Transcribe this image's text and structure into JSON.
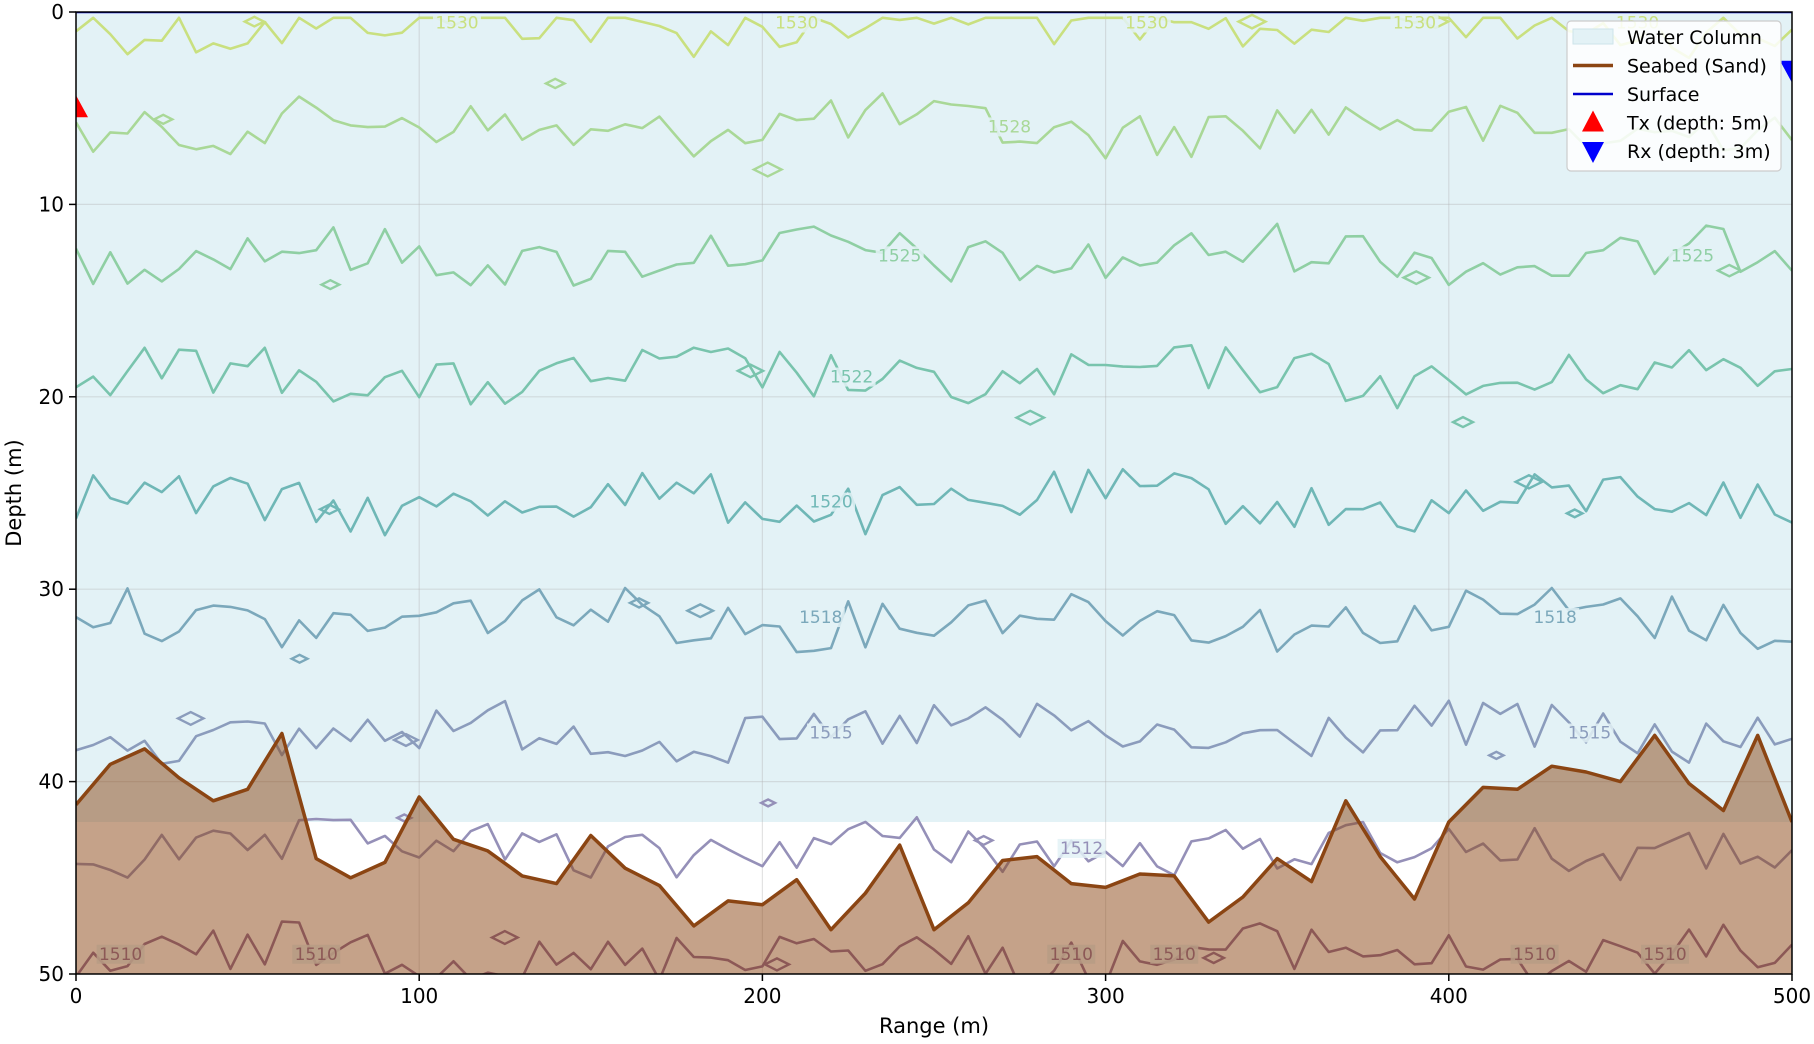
{
  "chart_data": {
    "type": "contour",
    "title": "",
    "xlabel": "Range (m)",
    "ylabel": "Depth (m)",
    "xlim": [
      0,
      500
    ],
    "ylim": [
      50,
      0
    ],
    "y_inverted": true,
    "x_ticks": [
      0,
      100,
      200,
      300,
      400,
      500
    ],
    "y_ticks": [
      0,
      10,
      20,
      30,
      40,
      50
    ],
    "x_tick_labels": [
      "0",
      "100",
      "200",
      "300",
      "400",
      "500"
    ],
    "y_tick_labels": [
      "0",
      "10",
      "20",
      "30",
      "40",
      "50"
    ],
    "grid": true,
    "legend_position": "top-right",
    "water_column": {
      "depth_from": 0,
      "depth_to": 42.1,
      "color": "#e3f2f6"
    },
    "contour_levels": [
      {
        "value": 1530,
        "depth": 0.6,
        "color": "#c9e07f",
        "labels": [
          {
            "x": 111,
            "text": "1530"
          },
          {
            "x": 210,
            "text": "1530"
          },
          {
            "x": 312,
            "text": "1530"
          },
          {
            "x": 390,
            "text": "1530"
          },
          {
            "x": 455,
            "text": "1530"
          }
        ]
      },
      {
        "value": 1528,
        "depth": 6.0,
        "color": "#a9d897",
        "labels": [
          {
            "x": 272,
            "text": "1528"
          }
        ]
      },
      {
        "value": 1525,
        "depth": 12.7,
        "color": "#8fcfa3",
        "labels": [
          {
            "x": 240,
            "text": "1525"
          },
          {
            "x": 471,
            "text": "1525"
          }
        ]
      },
      {
        "value": 1522,
        "depth": 19.0,
        "color": "#79c4ad",
        "labels": [
          {
            "x": 226,
            "text": "1522"
          }
        ]
      },
      {
        "value": 1520,
        "depth": 25.5,
        "color": "#6fb7b6",
        "labels": [
          {
            "x": 220,
            "text": "1520"
          }
        ]
      },
      {
        "value": 1518,
        "depth": 31.5,
        "color": "#7ba8bb",
        "labels": [
          {
            "x": 217,
            "text": "1518"
          },
          {
            "x": 431,
            "text": "1518"
          }
        ]
      },
      {
        "value": 1515,
        "depth": 37.5,
        "color": "#8b9cbc",
        "labels": [
          {
            "x": 220,
            "text": "1515"
          },
          {
            "x": 441,
            "text": "1515"
          }
        ]
      },
      {
        "value": 1512,
        "depth": 43.5,
        "color": "#9590b8",
        "labels": [
          {
            "x": 293,
            "text": "1512"
          }
        ]
      },
      {
        "value": 1510,
        "depth": 49.0,
        "color": "#8d6b98",
        "labels": [
          {
            "x": 13,
            "text": "1510"
          },
          {
            "x": 70,
            "text": "1510"
          },
          {
            "x": 290,
            "text": "1510"
          },
          {
            "x": 320,
            "text": "1510"
          },
          {
            "x": 425,
            "text": "1510"
          },
          {
            "x": 463,
            "text": "1510"
          }
        ]
      }
    ],
    "seabed": {
      "name": "Seabed (Sand)",
      "color": "#8b4513",
      "x": [
        0,
        10,
        20,
        30,
        40,
        50,
        60,
        70,
        80,
        90,
        100,
        110,
        120,
        130,
        140,
        150,
        160,
        170,
        180,
        190,
        200,
        210,
        220,
        230,
        240,
        250,
        260,
        270,
        280,
        290,
        300,
        310,
        320,
        330,
        340,
        350,
        360,
        370,
        380,
        390,
        400,
        410,
        420,
        430,
        440,
        450,
        460,
        470,
        480,
        490,
        500
      ],
      "depth": [
        41.2,
        39.1,
        38.3,
        39.8,
        41.0,
        40.4,
        37.5,
        44.0,
        45.0,
        44.2,
        40.8,
        43.0,
        43.6,
        44.9,
        45.3,
        42.8,
        44.5,
        45.4,
        47.5,
        46.2,
        46.4,
        45.1,
        47.7,
        45.8,
        43.3,
        47.7,
        46.3,
        44.1,
        43.9,
        45.3,
        45.5,
        44.8,
        44.9,
        47.3,
        46.0,
        44.0,
        45.2,
        41.0,
        43.9,
        46.1,
        42.1,
        40.3,
        40.4,
        39.2,
        39.5,
        40.0,
        37.6,
        40.1,
        41.5,
        37.6,
        42.1
      ]
    },
    "surface": {
      "name": "Surface",
      "depth": 0,
      "color": "#0000cc"
    },
    "tx": {
      "name": "Tx (depth: 5m)",
      "range": 0,
      "depth": 5,
      "color": "#ff0000"
    },
    "rx": {
      "name": "Rx (depth: 3m)",
      "range": 500,
      "depth": 3,
      "color": "#0000ff"
    },
    "legend": [
      {
        "label": "Water Column",
        "kind": "patch",
        "color": "#e3f2f6"
      },
      {
        "label": "Seabed (Sand)",
        "kind": "line",
        "color": "#8b4513"
      },
      {
        "label": "Surface",
        "kind": "line",
        "color": "#0000cc"
      },
      {
        "label": "Tx (depth: 5m)",
        "kind": "triangle-up",
        "color": "#ff0000"
      },
      {
        "label": "Rx (depth: 3m)",
        "kind": "triangle-down",
        "color": "#0000ff"
      }
    ]
  }
}
